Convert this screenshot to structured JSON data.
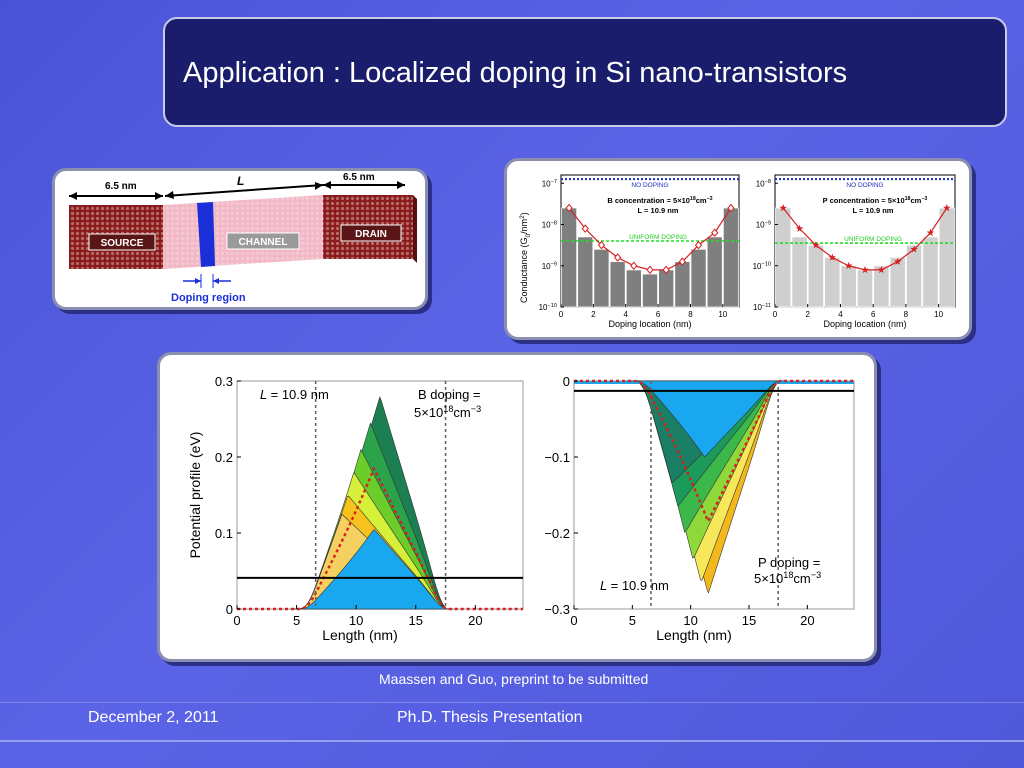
{
  "title": "Application : Localized doping in Si nano-transistors",
  "device": {
    "left_len": "6.5 nm",
    "right_len": "6.5 nm",
    "channel_len": "L",
    "source": "SOURCE",
    "channel": "CHANNEL",
    "drain": "DRAIN",
    "doping_region": "Doping region"
  },
  "credit": "Maassen and Guo, preprint to be submitted",
  "footer": {
    "date": "December 2, 2011",
    "center": "Ph.D. Thesis Presentation"
  },
  "colors": {
    "bg": "#4f58da",
    "title_box": "#1a1d6b",
    "source_drain": "#8b1a1a",
    "channel": "#f2b8c6",
    "doping": "#1a2fd8",
    "curve": "#d62020",
    "fill_blue": "#19a8f0"
  },
  "chart_data": [
    {
      "type": "bar",
      "panel": "conductance-B",
      "annotation": [
        "B concentration = 5×10",
        "18",
        "cm",
        "−3"
      ],
      "annotation_L": "L = 10.9 nm",
      "no_doping_label": "NO DOPING",
      "uniform_label": "UNIFORM DOPING",
      "ylabel": "Conductance (G",
      "ylabel_sub": "0",
      "ylabel_tail": "/nm",
      "ylabel_sup": "2",
      "ylabel_close": ")",
      "xlabel": "Doping location (nm)",
      "xticks": [
        0,
        2,
        4,
        6,
        8,
        10
      ],
      "yticks": [
        {
          "base": "10",
          "exp": "−7",
          "v": -7
        },
        {
          "base": "10",
          "exp": "−8",
          "v": -8
        },
        {
          "base": "10",
          "exp": "−9",
          "v": -9
        },
        {
          "base": "10",
          "exp": "−10",
          "v": -10
        }
      ],
      "ylim": [
        -10,
        -6.8
      ],
      "xlim": [
        0,
        11
      ],
      "no_doping_log": -6.9,
      "uniform_log": -8.4,
      "bar_x": [
        0.5,
        1.5,
        2.5,
        3.5,
        4.5,
        5.5,
        6.5,
        7.5,
        8.5,
        9.5,
        10.5
      ],
      "bar_log": [
        -7.6,
        -8.3,
        -8.6,
        -8.9,
        -9.1,
        -9.2,
        -9.1,
        -8.9,
        -8.6,
        -8.3,
        -7.6
      ],
      "curve_log": [
        -7.6,
        -8.1,
        -8.5,
        -8.8,
        -9.0,
        -9.1,
        -9.1,
        -8.9,
        -8.5,
        -8.2,
        -7.6
      ]
    },
    {
      "type": "bar",
      "panel": "conductance-P",
      "annotation": [
        "P concentration = 5×10",
        "18",
        "cm",
        "−3"
      ],
      "annotation_L": "L = 10.9 nm",
      "no_doping_label": "NO DOPING",
      "uniform_label": "UNIFORM DOPING",
      "xlabel": "Doping location (nm)",
      "xticks": [
        0,
        2,
        4,
        6,
        8,
        10
      ],
      "yticks": [
        {
          "base": "10",
          "exp": "−8",
          "v": -8
        },
        {
          "base": "10",
          "exp": "−9",
          "v": -9
        },
        {
          "base": "10",
          "exp": "−10",
          "v": -10
        },
        {
          "base": "10",
          "exp": "−11",
          "v": -11
        }
      ],
      "ylim": [
        -11,
        -7.8
      ],
      "xlim": [
        0,
        11
      ],
      "no_doping_log": -7.9,
      "uniform_log": -9.45,
      "bar_x": [
        0.5,
        1.5,
        2.5,
        3.5,
        4.5,
        5.5,
        6.5,
        7.5,
        8.5,
        9.5,
        10.5
      ],
      "bar_log": [
        -8.6,
        -9.3,
        -9.5,
        -9.8,
        -10.0,
        -10.1,
        -10.0,
        -9.8,
        -9.5,
        -9.3,
        -8.6
      ],
      "curve_log": [
        -8.6,
        -9.1,
        -9.5,
        -9.8,
        -10.0,
        -10.1,
        -10.1,
        -9.9,
        -9.6,
        -9.2,
        -8.6
      ]
    },
    {
      "type": "area",
      "panel": "potential-B",
      "ylabel": "Potential profile (eV)",
      "xlabel": "Length (nm)",
      "xticks": [
        0,
        5,
        10,
        15,
        20
      ],
      "yticks": [
        0,
        0.1,
        0.2,
        0.3
      ],
      "ytick_labels": [
        "0",
        "0.1",
        "0.2",
        "0.3"
      ],
      "xlim": [
        0,
        24
      ],
      "ylim": [
        0,
        0.3
      ],
      "L_label": "= 10.9 nm",
      "doping_label": [
        "B doping =",
        "5×10",
        "18",
        "cm",
        "−3"
      ],
      "vlines": [
        6.6,
        17.5
      ],
      "hline": 0.041,
      "peaks": [
        {
          "x": 12.0,
          "y": 0.28,
          "color": "#1b7f52"
        },
        {
          "x": 11.2,
          "y": 0.245,
          "color": "#2aa34a"
        },
        {
          "x": 10.4,
          "y": 0.21,
          "color": "#6ccc2a"
        },
        {
          "x": 9.8,
          "y": 0.18,
          "color": "#d6f03a"
        },
        {
          "x": 9.3,
          "y": 0.15,
          "color": "#f6c21e"
        },
        {
          "x": 8.8,
          "y": 0.125,
          "color": "#f3d060"
        }
      ],
      "blue_peak": {
        "x": 11.5,
        "y": 0.105
      },
      "dotted_peak": {
        "x": 11.5,
        "y": 0.185
      }
    },
    {
      "type": "area",
      "panel": "potential-P",
      "xlabel": "Length (nm)",
      "xticks": [
        0,
        5,
        10,
        15,
        20
      ],
      "yticks": [
        0,
        -0.1,
        -0.2,
        -0.3
      ],
      "ytick_labels": [
        "0",
        "−0.1",
        "−0.2",
        "−0.3"
      ],
      "xlim": [
        0,
        24
      ],
      "ylim": [
        -0.3,
        0
      ],
      "L_label": "= 10.9 nm",
      "doping_label": [
        "P doping =",
        "5×10",
        "18",
        "cm",
        "−3"
      ],
      "vlines": [
        6.6,
        17.5
      ],
      "hline": -0.013,
      "troughs": [
        {
          "x": 11.5,
          "y": -0.28,
          "color": "#f3b81a"
        },
        {
          "x": 10.9,
          "y": -0.265,
          "color": "#f6e85a"
        },
        {
          "x": 10.2,
          "y": -0.235,
          "color": "#8fd83a"
        },
        {
          "x": 9.5,
          "y": -0.2,
          "color": "#3cb84a"
        },
        {
          "x": 8.9,
          "y": -0.165,
          "color": "#1c9a5c"
        },
        {
          "x": 8.4,
          "y": -0.135,
          "color": "#1a7f64"
        }
      ],
      "blue_depth": -0.1,
      "dotted_trough": {
        "x": 11.5,
        "y": -0.185
      }
    }
  ]
}
